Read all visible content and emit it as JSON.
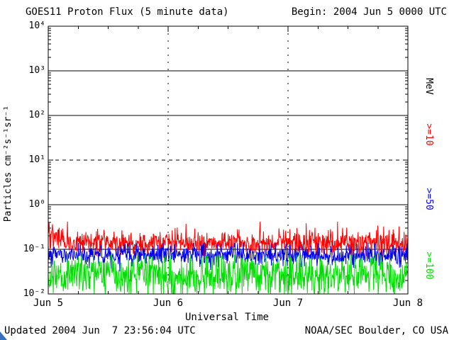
{
  "header": {
    "title": "GOES11 Proton Flux (5 minute data)",
    "begin": "Begin: 2004 Jun 5 0000 UTC"
  },
  "footer": {
    "updated": "Updated 2004 Jun  7 23:56:04 UTC",
    "source": "NOAA/SEC Boulder, CO USA"
  },
  "chart_data": {
    "type": "line",
    "title": "GOES11 Proton Flux (5 minute data)",
    "begin_time": "2004 Jun 5 0000 UTC",
    "xlabel": "Universal Time",
    "ylabel": "Particles cm⁻²s⁻¹sr⁻¹",
    "right_axis_unit": "MeV",
    "x_ticks": [
      "Jun 5",
      "Jun 6",
      "Jun 7",
      "Jun 8"
    ],
    "x_range_days": 3,
    "y_scale": "log",
    "ylim": [
      0.01,
      10000
    ],
    "y_tick_exponents": [
      4,
      3,
      2,
      1,
      0,
      -1,
      -2
    ],
    "y_tick_labels": [
      "10⁴",
      "10³",
      "10²",
      "10¹",
      "10⁰",
      "10⁻¹",
      "10⁻²"
    ],
    "gridlines": {
      "horizontal_solid_log": [
        3,
        2,
        0,
        -1
      ],
      "horizontal_dashed_log": [
        1
      ],
      "vertical_dashed_day": [
        1,
        2
      ]
    },
    "series": [
      {
        "name": ">=10",
        "unit": "MeV",
        "color": "#ff0000",
        "approx_range_flux": [
          0.07,
          0.4
        ],
        "log_mean": -0.85,
        "log_sigma": 0.14,
        "log_max": -0.38,
        "log_min": -1.15,
        "spike_prob": 0.02,
        "spike_amp": 0.25,
        "early_boost": 0.3,
        "seed": 101
      },
      {
        "name": ">=50",
        "unit": "MeV",
        "color": "#0000ee",
        "approx_range_flux": [
          0.03,
          0.13
        ],
        "log_mean": -1.13,
        "log_sigma": 0.12,
        "log_max": -0.86,
        "log_min": -1.55,
        "spike_prob": 0.015,
        "spike_amp": 0.2,
        "early_boost": 0,
        "seed": 202
      },
      {
        "name": ">=100",
        "unit": "MeV",
        "color": "#00dd00",
        "approx_range_flux": [
          0.01,
          0.07
        ],
        "log_mean": -1.58,
        "log_sigma": 0.24,
        "log_max": -1.12,
        "log_min": -2.0,
        "spike_prob": 0.01,
        "spike_amp": 0.2,
        "early_boost": 0,
        "seed": 303
      }
    ],
    "points_per_series": 860
  }
}
